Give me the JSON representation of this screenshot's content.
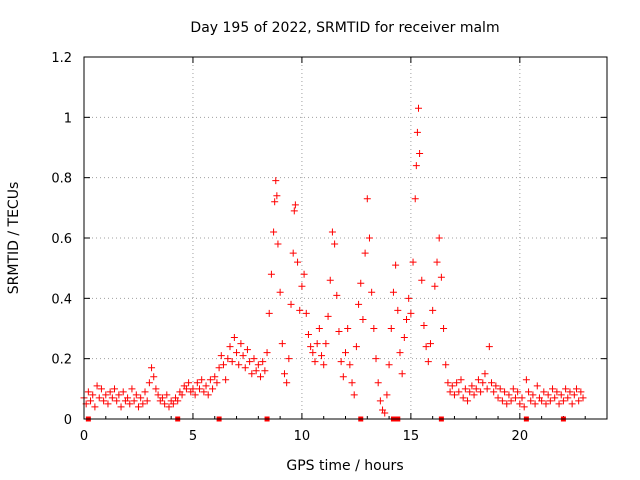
{
  "chart_data": {
    "type": "scatter",
    "title": "Day 195 of 2022, SRMTID for receiver malm",
    "xlabel": "GPS time / hours",
    "ylabel": "SRMTID / TECUs",
    "xlim": [
      0,
      24
    ],
    "ylim": [
      0,
      1.2
    ],
    "x_ticks": [
      0,
      5,
      10,
      15,
      20
    ],
    "x_tick_labels": [
      "0",
      "5",
      "10",
      "15",
      "20"
    ],
    "y_ticks": [
      0,
      0.2,
      0.4,
      0.6,
      0.8,
      1.0,
      1.2
    ],
    "y_tick_labels": [
      "0",
      "0.2",
      "0.4",
      "0.6",
      "0.8",
      "1",
      "1.2"
    ],
    "grid": true,
    "marker": "plus",
    "color": "#ff0000",
    "series": [
      {
        "name": "SRMTID",
        "points": [
          [
            0.0,
            0.07
          ],
          [
            0.1,
            0.05
          ],
          [
            0.2,
            0.09
          ],
          [
            0.3,
            0.06
          ],
          [
            0.4,
            0.08
          ],
          [
            0.5,
            0.04
          ],
          [
            0.6,
            0.11
          ],
          [
            0.7,
            0.07
          ],
          [
            0.8,
            0.1
          ],
          [
            0.9,
            0.06
          ],
          [
            1.0,
            0.08
          ],
          [
            1.1,
            0.05
          ],
          [
            1.2,
            0.09
          ],
          [
            1.3,
            0.07
          ],
          [
            1.4,
            0.1
          ],
          [
            1.5,
            0.06
          ],
          [
            1.6,
            0.08
          ],
          [
            1.7,
            0.04
          ],
          [
            1.8,
            0.09
          ],
          [
            1.9,
            0.06
          ],
          [
            2.0,
            0.07
          ],
          [
            2.1,
            0.05
          ],
          [
            2.2,
            0.1
          ],
          [
            2.3,
            0.06
          ],
          [
            2.4,
            0.08
          ],
          [
            2.5,
            0.04
          ],
          [
            2.6,
            0.07
          ],
          [
            2.7,
            0.05
          ],
          [
            2.8,
            0.09
          ],
          [
            2.9,
            0.06
          ],
          [
            3.0,
            0.12
          ],
          [
            3.1,
            0.17
          ],
          [
            3.2,
            0.14
          ],
          [
            3.3,
            0.1
          ],
          [
            3.4,
            0.08
          ],
          [
            3.5,
            0.06
          ],
          [
            3.6,
            0.07
          ],
          [
            3.7,
            0.05
          ],
          [
            3.8,
            0.08
          ],
          [
            3.9,
            0.04
          ],
          [
            4.0,
            0.06
          ],
          [
            4.1,
            0.05
          ],
          [
            4.2,
            0.07
          ],
          [
            4.3,
            0.06
          ],
          [
            4.4,
            0.09
          ],
          [
            4.5,
            0.08
          ],
          [
            4.6,
            0.11
          ],
          [
            4.7,
            0.1
          ],
          [
            4.8,
            0.12
          ],
          [
            4.9,
            0.09
          ],
          [
            5.0,
            0.1
          ],
          [
            5.1,
            0.08
          ],
          [
            5.2,
            0.12
          ],
          [
            5.3,
            0.1
          ],
          [
            5.4,
            0.13
          ],
          [
            5.5,
            0.09
          ],
          [
            5.6,
            0.11
          ],
          [
            5.7,
            0.08
          ],
          [
            5.8,
            0.13
          ],
          [
            5.9,
            0.1
          ],
          [
            6.0,
            0.14
          ],
          [
            6.1,
            0.12
          ],
          [
            6.2,
            0.17
          ],
          [
            6.3,
            0.21
          ],
          [
            6.4,
            0.18
          ],
          [
            6.5,
            0.13
          ],
          [
            6.6,
            0.2
          ],
          [
            6.7,
            0.24
          ],
          [
            6.8,
            0.19
          ],
          [
            6.9,
            0.27
          ],
          [
            7.0,
            0.22
          ],
          [
            7.1,
            0.18
          ],
          [
            7.2,
            0.25
          ],
          [
            7.3,
            0.21
          ],
          [
            7.4,
            0.17
          ],
          [
            7.5,
            0.23
          ],
          [
            7.6,
            0.19
          ],
          [
            7.7,
            0.15
          ],
          [
            7.8,
            0.2
          ],
          [
            7.9,
            0.16
          ],
          [
            8.0,
            0.18
          ],
          [
            8.1,
            0.14
          ],
          [
            8.2,
            0.19
          ],
          [
            8.3,
            0.16
          ],
          [
            8.4,
            0.22
          ],
          [
            8.5,
            0.35
          ],
          [
            8.6,
            0.48
          ],
          [
            8.7,
            0.62
          ],
          [
            8.75,
            0.72
          ],
          [
            8.8,
            0.79
          ],
          [
            8.85,
            0.74
          ],
          [
            8.9,
            0.58
          ],
          [
            9.0,
            0.42
          ],
          [
            9.1,
            0.25
          ],
          [
            9.2,
            0.15
          ],
          [
            9.3,
            0.12
          ],
          [
            9.4,
            0.2
          ],
          [
            9.5,
            0.38
          ],
          [
            9.6,
            0.55
          ],
          [
            9.65,
            0.69
          ],
          [
            9.7,
            0.71
          ],
          [
            9.8,
            0.52
          ],
          [
            9.9,
            0.36
          ],
          [
            10.0,
            0.44
          ],
          [
            10.1,
            0.48
          ],
          [
            10.2,
            0.35
          ],
          [
            10.3,
            0.28
          ],
          [
            10.4,
            0.24
          ],
          [
            10.5,
            0.22
          ],
          [
            10.6,
            0.19
          ],
          [
            10.7,
            0.25
          ],
          [
            10.8,
            0.3
          ],
          [
            10.9,
            0.21
          ],
          [
            11.0,
            0.18
          ],
          [
            11.1,
            0.25
          ],
          [
            11.2,
            0.34
          ],
          [
            11.3,
            0.46
          ],
          [
            11.4,
            0.62
          ],
          [
            11.5,
            0.58
          ],
          [
            11.6,
            0.41
          ],
          [
            11.7,
            0.29
          ],
          [
            11.8,
            0.19
          ],
          [
            11.9,
            0.14
          ],
          [
            12.0,
            0.22
          ],
          [
            12.1,
            0.3
          ],
          [
            12.2,
            0.18
          ],
          [
            12.3,
            0.12
          ],
          [
            12.4,
            0.08
          ],
          [
            12.5,
            0.24
          ],
          [
            12.6,
            0.38
          ],
          [
            12.7,
            0.45
          ],
          [
            12.8,
            0.33
          ],
          [
            12.9,
            0.55
          ],
          [
            13.0,
            0.73
          ],
          [
            13.1,
            0.6
          ],
          [
            13.2,
            0.42
          ],
          [
            13.3,
            0.3
          ],
          [
            13.4,
            0.2
          ],
          [
            13.5,
            0.12
          ],
          [
            13.6,
            0.06
          ],
          [
            13.7,
            0.03
          ],
          [
            13.8,
            0.02
          ],
          [
            13.9,
            0.08
          ],
          [
            14.0,
            0.18
          ],
          [
            14.1,
            0.3
          ],
          [
            14.2,
            0.42
          ],
          [
            14.3,
            0.51
          ],
          [
            14.4,
            0.36
          ],
          [
            14.5,
            0.22
          ],
          [
            14.6,
            0.15
          ],
          [
            14.7,
            0.27
          ],
          [
            14.8,
            0.33
          ],
          [
            14.9,
            0.4
          ],
          [
            15.0,
            0.35
          ],
          [
            15.1,
            0.52
          ],
          [
            15.2,
            0.73
          ],
          [
            15.25,
            0.84
          ],
          [
            15.3,
            0.95
          ],
          [
            15.35,
            1.03
          ],
          [
            15.4,
            0.88
          ],
          [
            15.5,
            0.46
          ],
          [
            15.6,
            0.31
          ],
          [
            15.7,
            0.24
          ],
          [
            15.8,
            0.19
          ],
          [
            15.9,
            0.25
          ],
          [
            16.0,
            0.36
          ],
          [
            16.1,
            0.44
          ],
          [
            16.2,
            0.52
          ],
          [
            16.3,
            0.6
          ],
          [
            16.4,
            0.47
          ],
          [
            16.5,
            0.3
          ],
          [
            16.6,
            0.18
          ],
          [
            16.7,
            0.12
          ],
          [
            16.8,
            0.09
          ],
          [
            16.9,
            0.11
          ],
          [
            17.0,
            0.08
          ],
          [
            17.1,
            0.12
          ],
          [
            17.2,
            0.09
          ],
          [
            17.3,
            0.13
          ],
          [
            17.4,
            0.07
          ],
          [
            17.5,
            0.1
          ],
          [
            17.6,
            0.06
          ],
          [
            17.7,
            0.09
          ],
          [
            17.8,
            0.11
          ],
          [
            17.9,
            0.08
          ],
          [
            18.0,
            0.1
          ],
          [
            18.1,
            0.13
          ],
          [
            18.2,
            0.09
          ],
          [
            18.3,
            0.12
          ],
          [
            18.4,
            0.15
          ],
          [
            18.5,
            0.1
          ],
          [
            18.6,
            0.24
          ],
          [
            18.7,
            0.12
          ],
          [
            18.8,
            0.09
          ],
          [
            18.9,
            0.11
          ],
          [
            19.0,
            0.07
          ],
          [
            19.1,
            0.1
          ],
          [
            19.2,
            0.06
          ],
          [
            19.3,
            0.09
          ],
          [
            19.4,
            0.05
          ],
          [
            19.5,
            0.08
          ],
          [
            19.6,
            0.06
          ],
          [
            19.7,
            0.1
          ],
          [
            19.8,
            0.07
          ],
          [
            19.9,
            0.09
          ],
          [
            20.0,
            0.05
          ],
          [
            20.1,
            0.07
          ],
          [
            20.2,
            0.04
          ],
          [
            20.3,
            0.13
          ],
          [
            20.4,
            0.09
          ],
          [
            20.5,
            0.06
          ],
          [
            20.6,
            0.08
          ],
          [
            20.7,
            0.05
          ],
          [
            20.8,
            0.11
          ],
          [
            20.9,
            0.07
          ],
          [
            21.0,
            0.06
          ],
          [
            21.1,
            0.09
          ],
          [
            21.2,
            0.05
          ],
          [
            21.3,
            0.08
          ],
          [
            21.4,
            0.06
          ],
          [
            21.5,
            0.1
          ],
          [
            21.6,
            0.07
          ],
          [
            21.7,
            0.09
          ],
          [
            21.8,
            0.05
          ],
          [
            21.9,
            0.08
          ],
          [
            22.0,
            0.06
          ],
          [
            22.1,
            0.1
          ],
          [
            22.2,
            0.07
          ],
          [
            22.3,
            0.09
          ],
          [
            22.4,
            0.05
          ],
          [
            22.5,
            0.08
          ],
          [
            22.6,
            0.1
          ],
          [
            22.7,
            0.06
          ],
          [
            22.8,
            0.09
          ],
          [
            22.9,
            0.07
          ]
        ]
      }
    ],
    "zero_points": [
      0.2,
      4.3,
      6.2,
      8.4,
      12.7,
      14.2,
      14.4,
      16.4,
      20.3,
      22.0
    ]
  }
}
